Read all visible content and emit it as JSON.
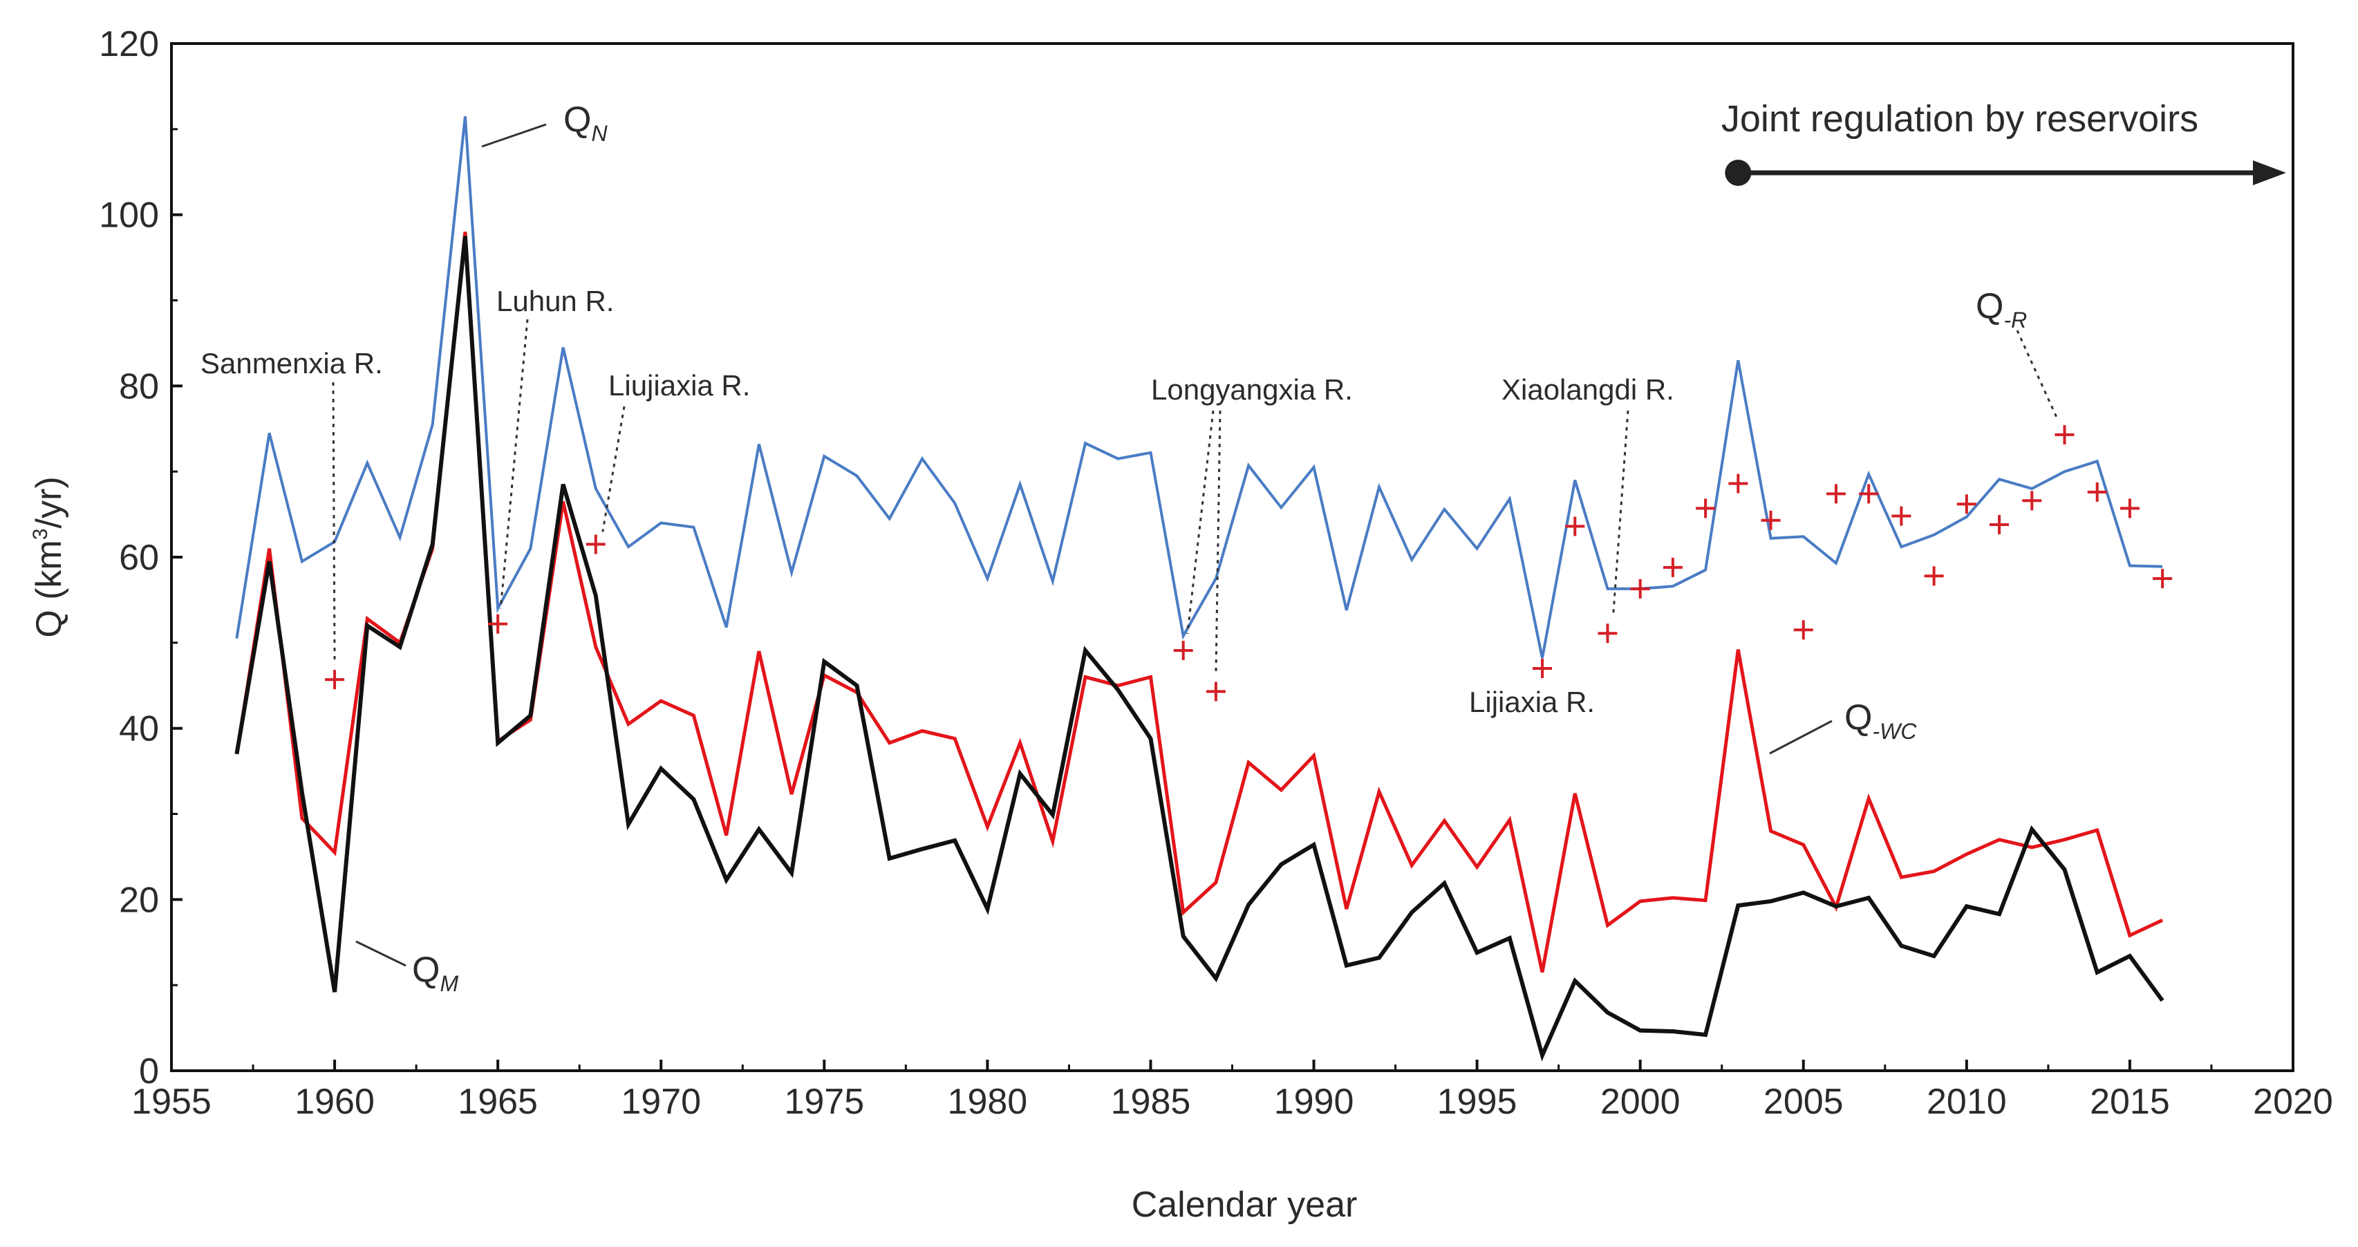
{
  "chart_data": {
    "type": "line",
    "xlabel": "Calendar year",
    "ylabel": "Q (km³/yr)",
    "ylabel_parts": {
      "pre": "Q (km",
      "sup": "3",
      "post": "/yr)"
    },
    "xlim": [
      1955,
      2020
    ],
    "ylim": [
      0,
      120
    ],
    "x_ticks": [
      1955,
      1960,
      1965,
      1970,
      1975,
      1980,
      1985,
      1990,
      1995,
      2000,
      2005,
      2010,
      2015,
      2020
    ],
    "x_tick_labels": [
      "1955",
      "1960",
      "1965",
      "1970",
      "1975",
      "1980",
      "1985",
      "1990",
      "1995",
      "2000",
      "2005",
      "2010",
      "2015",
      "2020"
    ],
    "y_ticks": [
      0,
      20,
      40,
      60,
      80,
      100,
      120
    ],
    "y_tick_labels": [
      "0",
      "20",
      "40",
      "60",
      "80",
      "100",
      "120"
    ],
    "x": [
      1957,
      1958,
      1959,
      1960,
      1961,
      1962,
      1963,
      1964,
      1965,
      1966,
      1967,
      1968,
      1969,
      1970,
      1971,
      1972,
      1973,
      1974,
      1975,
      1976,
      1977,
      1978,
      1979,
      1980,
      1981,
      1982,
      1983,
      1984,
      1985,
      1986,
      1987,
      1988,
      1989,
      1990,
      1991,
      1992,
      1993,
      1994,
      1995,
      1996,
      1997,
      1998,
      1999,
      2000,
      2001,
      2002,
      2003,
      2004,
      2005,
      2006,
      2007,
      2008,
      2009,
      2010,
      2011,
      2012,
      2013,
      2014,
      2015,
      2016
    ],
    "series": [
      {
        "name": "QN",
        "label_main": "Q",
        "label_sub": "N",
        "color": "#4a7cc4",
        "values": [
          50.5,
          74.5,
          59.5,
          61.8,
          71,
          62.3,
          75.5,
          111.5,
          54,
          61,
          84.5,
          68,
          61.2,
          64,
          63.5,
          51.8,
          73.2,
          58.2,
          71.8,
          69.5,
          64.5,
          71.5,
          66.3,
          57.5,
          68.5,
          57.2,
          73.3,
          71.5,
          72.2,
          50.8,
          57.5,
          70.7,
          65.8,
          70.5,
          53.8,
          68.2,
          59.7,
          65.6,
          61,
          66.8,
          48.2,
          69,
          56.3,
          56.3,
          56.6,
          58.5,
          83,
          62.2,
          62.4,
          59.3,
          69.7,
          61.2,
          62.6,
          64.7,
          69.1,
          68,
          70,
          71.2,
          59,
          58.9
        ]
      },
      {
        "name": "Q-WC",
        "label_main": "Q",
        "label_sub": "-WC",
        "color": "#e3151a",
        "values": [
          37,
          61,
          29.5,
          25.5,
          52.8,
          50,
          61,
          98,
          38.5,
          41,
          66.5,
          49.5,
          40.5,
          43.2,
          41.5,
          27.5,
          49,
          32.3,
          46.2,
          44.2,
          38.3,
          39.7,
          38.8,
          28.5,
          38.3,
          26.8,
          46,
          45,
          46,
          18.5,
          22,
          36,
          32.8,
          36.8,
          18.9,
          32.6,
          24,
          29.2,
          23.8,
          29.3,
          11.5,
          32.4,
          17,
          19.8,
          20.2,
          19.9,
          49.2,
          28,
          26.4,
          19.1,
          31.8,
          22.6,
          23.3,
          25.3,
          27,
          26.1,
          27,
          28.1,
          15.8,
          17.6
        ]
      },
      {
        "name": "QM",
        "label_main": "Q",
        "label_sub": "M",
        "color": "#111111",
        "values": [
          37,
          59.5,
          32.5,
          9.2,
          52,
          49.5,
          61.5,
          97.5,
          38.3,
          41.5,
          68.5,
          55.5,
          28.8,
          35.3,
          31.7,
          22.3,
          28.2,
          23.1,
          47.8,
          45,
          24.8,
          25.9,
          26.9,
          18.9,
          34.7,
          29.9,
          49.1,
          44.5,
          38.8,
          15.7,
          10.8,
          19.4,
          24.1,
          26.4,
          12.3,
          13.2,
          18.5,
          21.9,
          13.8,
          15.5,
          1.8,
          10.5,
          6.8,
          4.7,
          4.6,
          4.2,
          19.3,
          19.8,
          20.8,
          19.2,
          20.2,
          14.6,
          13.4,
          19.2,
          18.3,
          28.2,
          23.5,
          11.5,
          13.4,
          8.2
        ]
      }
    ],
    "markers": {
      "name": "Q-R",
      "label_main": "Q",
      "label_sub": "-R",
      "symbol": "+",
      "color": "#d41f26",
      "x": [
        1960,
        1965,
        1968,
        1986,
        1987,
        1997,
        1998,
        1999,
        2000,
        2001,
        2002,
        2003,
        2004,
        2005,
        2006,
        2007,
        2008,
        2009,
        2010,
        2011,
        2012,
        2013,
        2014,
        2015,
        2016
      ],
      "values": [
        45.7,
        52.2,
        61.5,
        49.1,
        44.3,
        47,
        63.6,
        51.1,
        56.3,
        58.8,
        65.7,
        68.6,
        64.3,
        51.5,
        67.4,
        67.4,
        64.8,
        57.8,
        66.2,
        63.8,
        66.6,
        74.3,
        67.6,
        65.7,
        57.5
      ]
    },
    "reservoirs": [
      {
        "name": "Sanmenxia R.",
        "year": 1960
      },
      {
        "name": "Luhun R.",
        "year": 1965
      },
      {
        "name": "Liujiaxia R.",
        "year": 1968
      },
      {
        "name": "Longyangxia R.",
        "year": 1986
      },
      {
        "name": "Longyangxia R.",
        "year": 1987
      },
      {
        "name": "Lijiaxia R.",
        "year": 1997
      },
      {
        "name": "Xiaolangdi R.",
        "year": 1999
      }
    ],
    "annotation": {
      "text": "Joint regulation by reservoirs",
      "from_year": 2003,
      "to_year": 2020
    }
  }
}
